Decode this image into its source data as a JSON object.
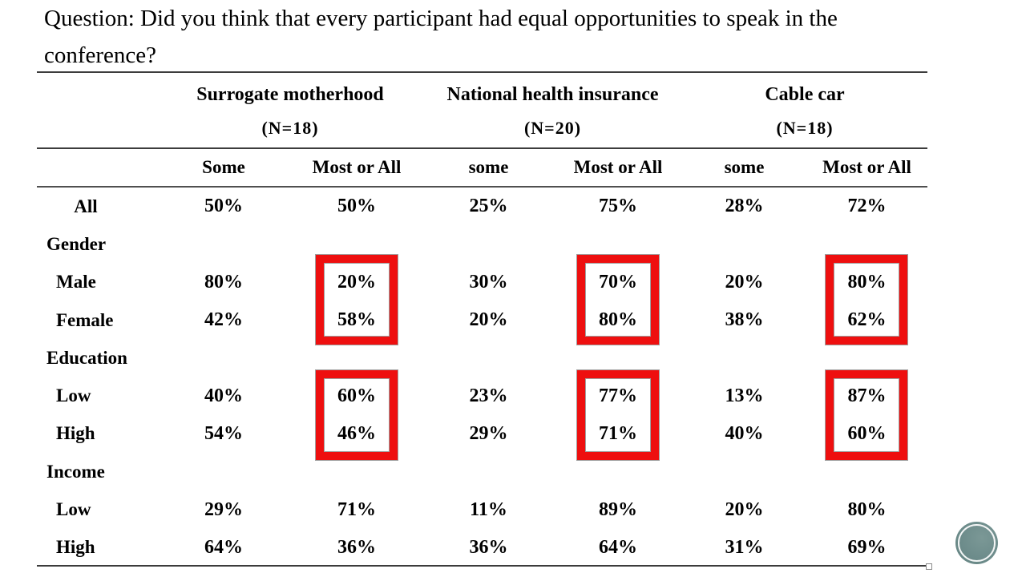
{
  "title": {
    "lines": [
      "Question: Did you think that every participant had equal opportunities to speak in the",
      "conference?"
    ]
  },
  "table": {
    "groups": [
      {
        "label": "Surrogate motherhood",
        "n": "(N=18)",
        "sub": [
          "Some",
          "Most or All"
        ]
      },
      {
        "label": "National health insurance",
        "n": "(N=20)",
        "sub": [
          "some",
          "Most or All"
        ]
      },
      {
        "label": "Cable car",
        "n": "(N=18)",
        "sub": [
          "some",
          "Most or All"
        ]
      }
    ],
    "subheaders": [
      "Some",
      "Most or All",
      "some",
      "Most or All",
      "some",
      "Most or All"
    ],
    "rows": [
      {
        "label": "All",
        "type": "all",
        "values": [
          "50%",
          "50%",
          "25%",
          "75%",
          "28%",
          "72%"
        ]
      },
      {
        "label": "Gender",
        "type": "category",
        "values": [
          "",
          "",
          "",
          "",
          "",
          ""
        ]
      },
      {
        "label": "Male",
        "type": "sub",
        "values": [
          "80%",
          "20%",
          "30%",
          "70%",
          "20%",
          "80%"
        ]
      },
      {
        "label": "Female",
        "type": "sub",
        "values": [
          "42%",
          "58%",
          "20%",
          "80%",
          "38%",
          "62%"
        ]
      },
      {
        "label": "Education",
        "type": "category",
        "values": [
          "",
          "",
          "",
          "",
          "",
          ""
        ]
      },
      {
        "label": "Low",
        "type": "sub",
        "values": [
          "40%",
          "60%",
          "23%",
          "77%",
          "13%",
          "87%"
        ]
      },
      {
        "label": "High",
        "type": "sub",
        "values": [
          "54%",
          "46%",
          "29%",
          "71%",
          "40%",
          "60%"
        ]
      },
      {
        "label": "Income",
        "type": "category",
        "values": [
          "",
          "",
          "",
          "",
          "",
          ""
        ]
      },
      {
        "label": "Low",
        "type": "sub",
        "values": [
          "29%",
          "71%",
          "11%",
          "89%",
          "20%",
          "80%"
        ]
      },
      {
        "label": "High",
        "type": "sub",
        "values": [
          "64%",
          "36%",
          "36%",
          "64%",
          "31%",
          "69%"
        ]
      }
    ],
    "highlighted_cells": "Most-or-All columns for Gender (Male/Female) and Education (Low/High) rows",
    "highlight_color": "#ee0f0f"
  },
  "chart_data": {
    "type": "table",
    "title": "Question: Did you think that every participant had equal opportunities to speak in the conference?",
    "column_groups": [
      "Surrogate motherhood (N=18)",
      "National health insurance (N=20)",
      "Cable car (N=18)"
    ],
    "columns": [
      "Some",
      "Most or All",
      "some",
      "Most or All",
      "some",
      "Most or All"
    ],
    "rows": [
      {
        "label": "All",
        "values": [
          50,
          50,
          25,
          75,
          28,
          72
        ]
      },
      {
        "label": "Male",
        "values": [
          80,
          20,
          30,
          70,
          20,
          80
        ]
      },
      {
        "label": "Female",
        "values": [
          42,
          58,
          20,
          80,
          38,
          62
        ]
      },
      {
        "label": "Education Low",
        "values": [
          40,
          60,
          23,
          77,
          13,
          87
        ]
      },
      {
        "label": "Education High",
        "values": [
          54,
          46,
          29,
          71,
          40,
          60
        ]
      },
      {
        "label": "Income Low",
        "values": [
          29,
          71,
          11,
          89,
          20,
          80
        ]
      },
      {
        "label": "Income High",
        "values": [
          64,
          36,
          36,
          64,
          31,
          69
        ]
      }
    ],
    "units": "percent"
  },
  "decorations": {
    "badge_color": "#6d8c8b"
  }
}
